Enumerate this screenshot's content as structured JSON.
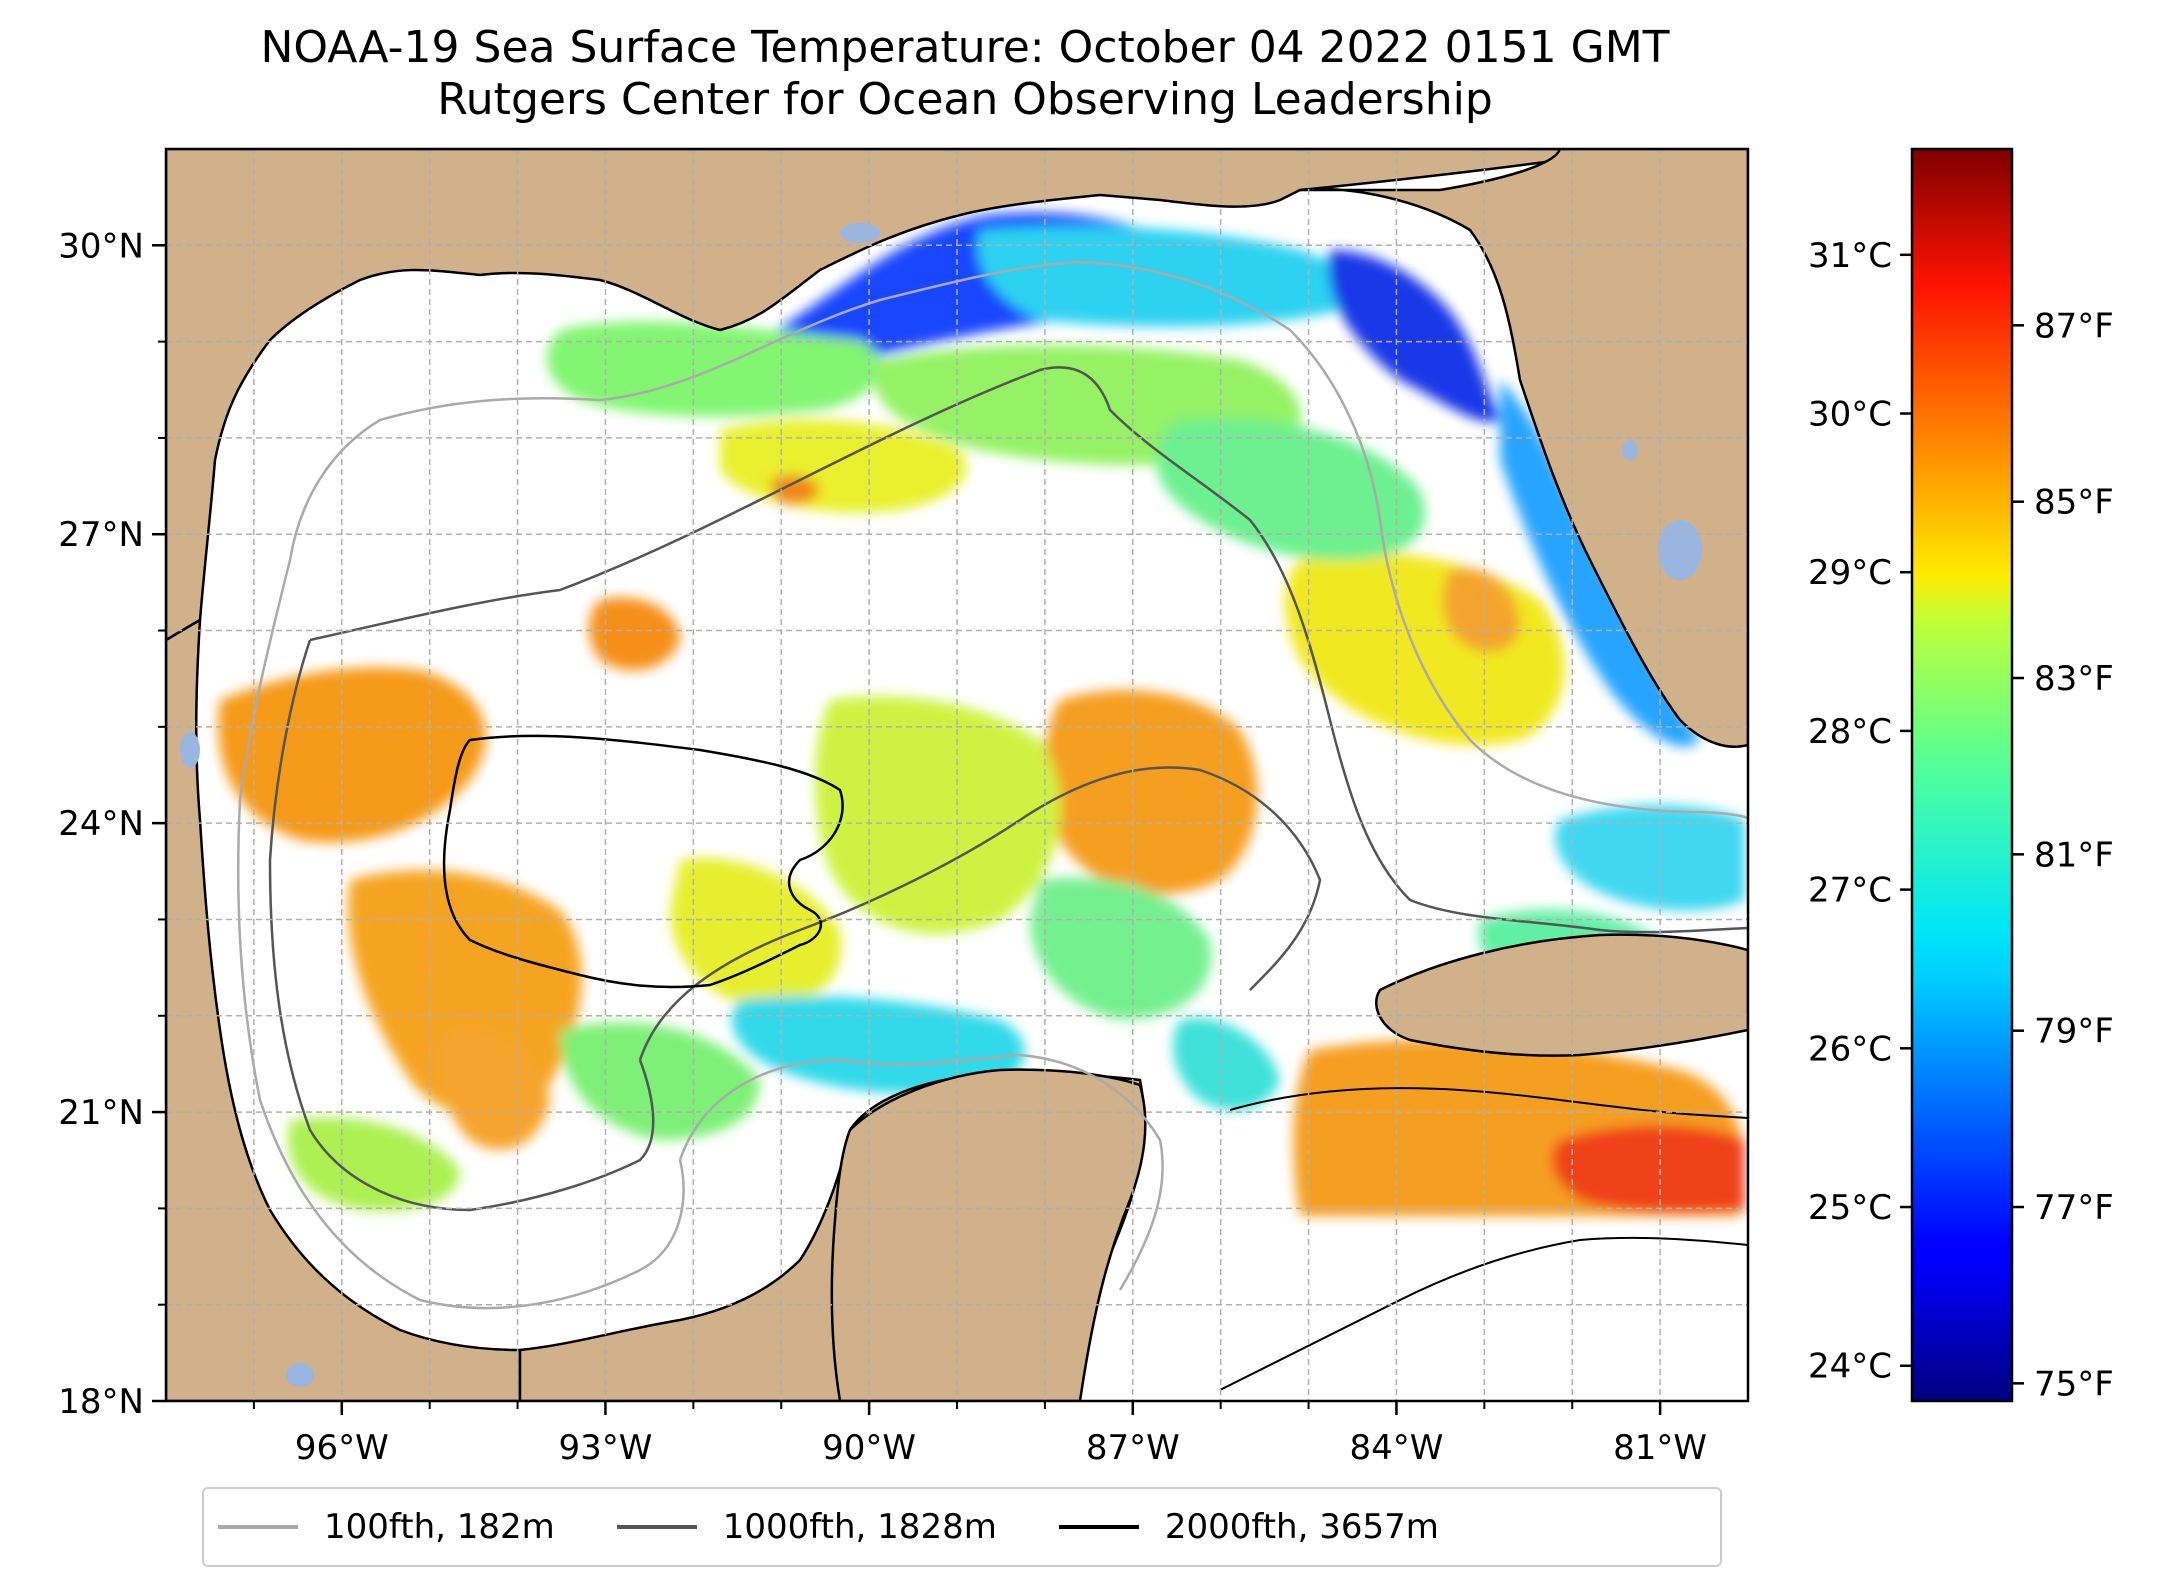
{
  "title": {
    "line1": "NOAA-19 Sea Surface Temperature: October 04 2022 0151 GMT",
    "line2": "Rutgers Center for Ocean Observing Leadership"
  },
  "map": {
    "region": "Gulf of Mexico",
    "lon_range": [
      -98,
      -80
    ],
    "lat_range": [
      18,
      31
    ],
    "lon_ticks": [
      {
        "value": -96,
        "label": "96°W"
      },
      {
        "value": -93,
        "label": "93°W"
      },
      {
        "value": -90,
        "label": "90°W"
      },
      {
        "value": -87,
        "label": "87°W"
      },
      {
        "value": -84,
        "label": "84°W"
      },
      {
        "value": -81,
        "label": "81°W"
      }
    ],
    "lat_ticks": [
      {
        "value": 18,
        "label": "18°N"
      },
      {
        "value": 21,
        "label": "21°N"
      },
      {
        "value": 24,
        "label": "24°N"
      },
      {
        "value": 27,
        "label": "27°N"
      },
      {
        "value": 30,
        "label": "30°N"
      }
    ],
    "land_color": "#d0b18a",
    "lake_color": "#98b6e0",
    "grid": true
  },
  "colorbar": {
    "colormap": "jet",
    "range_f": [
      74.8,
      89.0
    ],
    "celsius_ticks": [
      {
        "value": 24,
        "label": "24°C"
      },
      {
        "value": 25,
        "label": "25°C"
      },
      {
        "value": 26,
        "label": "26°C"
      },
      {
        "value": 27,
        "label": "27°C"
      },
      {
        "value": 28,
        "label": "28°C"
      },
      {
        "value": 29,
        "label": "29°C"
      },
      {
        "value": 30,
        "label": "30°C"
      },
      {
        "value": 31,
        "label": "31°C"
      }
    ],
    "fahrenheit_ticks": [
      {
        "value": 75,
        "label": "75°F"
      },
      {
        "value": 77,
        "label": "77°F"
      },
      {
        "value": 79,
        "label": "79°F"
      },
      {
        "value": 81,
        "label": "81°F"
      },
      {
        "value": 83,
        "label": "83°F"
      },
      {
        "value": 85,
        "label": "85°F"
      },
      {
        "value": 87,
        "label": "87°F"
      }
    ]
  },
  "legend": {
    "items": [
      {
        "label": "100fth, 182m",
        "color": "#aaaaaa"
      },
      {
        "label": "1000fth, 1828m",
        "color": "#555555"
      },
      {
        "label": "2000fth, 3657m",
        "color": "#000000"
      }
    ]
  }
}
